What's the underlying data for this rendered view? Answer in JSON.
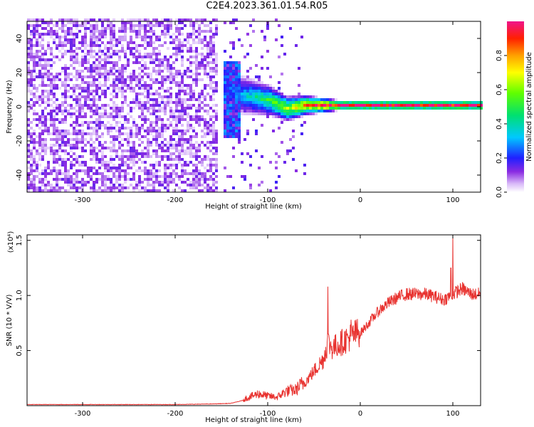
{
  "page_title": "C2E4.2023.361.01.54.R05",
  "colors": {
    "snr_line": "#e8322f",
    "axis": "#000000",
    "background": "#ffffff"
  },
  "chart_data": [
    {
      "type": "heatmap",
      "xlabel": "Height of straight line (km)",
      "ylabel": "Frequency (Hz)",
      "xlim": [
        -360,
        130
      ],
      "ylim": [
        -50,
        50
      ],
      "xticks": [
        -300,
        -200,
        -100,
        0,
        100
      ],
      "yticks": [
        -40,
        -20,
        0,
        20,
        40
      ],
      "grid": false,
      "colorbar": {
        "label": "Normalized spectral amplitude",
        "range": [
          0.0,
          1.0
        ],
        "ticks": [
          0.0,
          0.2,
          0.4,
          0.6,
          0.8
        ],
        "colormap": "rainbow (white-violet-blue-cyan-green-yellow-orange-red-magenta)"
      },
      "features": [
        {
          "region": "noise",
          "x_range": [
            -360,
            -155
          ],
          "y_range": [
            -50,
            50
          ],
          "amplitude": [
            0.0,
            0.15
          ]
        },
        {
          "region": "onset",
          "x_range": [
            -150,
            -130
          ],
          "y_range": [
            -20,
            25
          ],
          "amplitude": [
            0.1,
            0.3
          ]
        },
        {
          "region": "signal_band",
          "x_range": [
            -150,
            130
          ],
          "center_hz": [
            [
              -150,
              12
            ],
            [
              -130,
              6
            ],
            [
              -100,
              3
            ],
            [
              -80,
              -2
            ],
            [
              -60,
              0
            ],
            [
              -40,
              0
            ],
            [
              0,
              0
            ],
            [
              130,
              0
            ]
          ],
          "peak_amplitude": 0.9
        }
      ]
    },
    {
      "type": "line",
      "xlabel": "Height of straight line (km)",
      "ylabel": "SNR (10 * V/V)",
      "y_multiplier": "(x10⁴)",
      "xlim": [
        -360,
        130
      ],
      "ylim": [
        0,
        1.55
      ],
      "xticks": [
        -300,
        -200,
        -100,
        0,
        100
      ],
      "yticks": [
        0.5,
        1.0,
        1.5
      ],
      "grid": false,
      "series": [
        {
          "x": [
            -360,
            -300,
            -250,
            -200,
            -160,
            -140,
            -130,
            -120,
            -110,
            -100,
            -90,
            -80,
            -70,
            -60,
            -50,
            -40,
            -35,
            -30,
            -20,
            -10,
            0,
            10,
            20,
            30,
            40,
            50,
            60,
            70,
            80,
            90,
            100,
            110,
            120,
            130
          ],
          "y": [
            0.01,
            0.01,
            0.01,
            0.01,
            0.015,
            0.02,
            0.04,
            0.07,
            0.1,
            0.08,
            0.07,
            0.12,
            0.13,
            0.2,
            0.3,
            0.4,
            0.55,
            0.5,
            0.55,
            0.6,
            0.65,
            0.75,
            0.85,
            0.92,
            0.97,
            1.0,
            1.0,
            1.0,
            0.98,
            0.95,
            1.0,
            1.05,
            1.0,
            1.0
          ]
        }
      ],
      "spikes": [
        {
          "x": -35,
          "y": 1.08
        },
        {
          "x": -10,
          "y": 0.78
        },
        {
          "x": 100,
          "y": 1.6
        },
        {
          "x": 98,
          "y": 1.25
        }
      ]
    }
  ]
}
